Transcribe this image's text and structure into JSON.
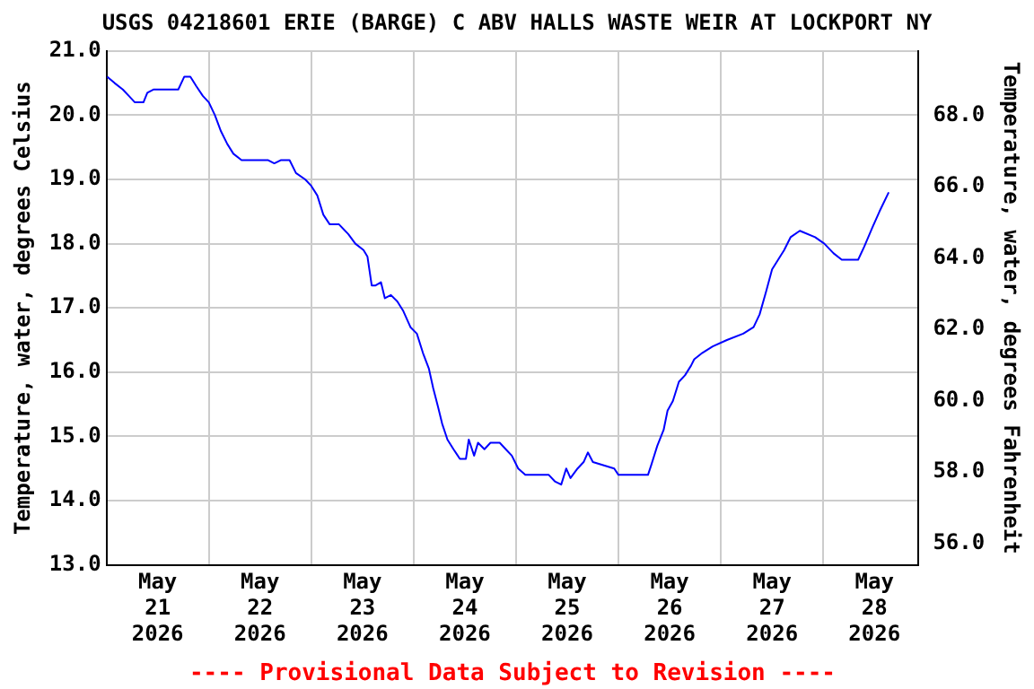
{
  "chart_data": {
    "type": "line",
    "title": "USGS 04218601 ERIE (BARGE) C ABV HALLS WASTE WEIR AT LOCKPORT NY",
    "ylabel": "Temperature, water, degrees Celsius",
    "y2label": "Temperature, water, degrees Fahrenheit",
    "annotations": [
      "---- Provisional Data Subject to Revision ----"
    ],
    "x": [
      "2026-05-21T00:10",
      "2026-05-21T01:55",
      "2026-05-21T03:50",
      "2026-05-21T05:15",
      "2026-05-21T06:40",
      "2026-05-21T08:40",
      "2026-05-21T09:35",
      "2026-05-21T11:00",
      "2026-05-21T16:50",
      "2026-05-21T18:15",
      "2026-05-21T19:40",
      "2026-05-21T21:05",
      "2026-05-21T22:35",
      "2026-05-22T00:00",
      "2026-05-22T01:25",
      "2026-05-22T02:50",
      "2026-05-22T04:20",
      "2026-05-22T05:45",
      "2026-05-22T07:40",
      "2026-05-22T13:55",
      "2026-05-22T15:20",
      "2026-05-22T16:50",
      "2026-05-22T18:55",
      "2026-05-22T20:25",
      "2026-05-22T22:35",
      "2026-05-23T00:00",
      "2026-05-23T01:25",
      "2026-05-23T02:50",
      "2026-05-23T04:20",
      "2026-05-23T06:30",
      "2026-05-23T08:40",
      "2026-05-23T10:20",
      "2026-05-23T12:15",
      "2026-05-23T13:10",
      "2026-05-23T14:10",
      "2026-05-23T15:05",
      "2026-05-23T16:20",
      "2026-05-23T17:15",
      "2026-05-23T18:40",
      "2026-05-23T20:10",
      "2026-05-23T21:35",
      "2026-05-23T23:15",
      "2026-05-24T00:45",
      "2026-05-24T02:10",
      "2026-05-24T03:35",
      "2026-05-24T04:35",
      "2026-05-24T05:45",
      "2026-05-24T06:40",
      "2026-05-24T07:55",
      "2026-05-24T09:20",
      "2026-05-24T10:50",
      "2026-05-24T12:15",
      "2026-05-24T12:55",
      "2026-05-24T14:10",
      "2026-05-24T15:05",
      "2026-05-24T16:35",
      "2026-05-24T18:00",
      "2026-05-24T20:10",
      "2026-05-24T21:35",
      "2026-05-24T23:00",
      "2026-05-25T00:30",
      "2026-05-25T02:10",
      "2026-05-25T07:40",
      "2026-05-25T09:05",
      "2026-05-25T10:35",
      "2026-05-25T11:45",
      "2026-05-25T12:45",
      "2026-05-25T14:25",
      "2026-05-25T15:50",
      "2026-05-25T16:50",
      "2026-05-25T18:00",
      "2026-05-25T23:00",
      "2026-05-26T00:00",
      "2026-05-26T06:55",
      "2026-05-26T07:40",
      "2026-05-26T09:05",
      "2026-05-26T10:35",
      "2026-05-26T11:30",
      "2026-05-26T12:45",
      "2026-05-26T14:10",
      "2026-05-26T15:35",
      "2026-05-26T17:00",
      "2026-05-26T17:45",
      "2026-05-26T19:40",
      "2026-05-26T22:05",
      "2026-05-27T01:25",
      "2026-05-27T05:15",
      "2026-05-27T07:40",
      "2026-05-27T09:05",
      "2026-05-27T10:35",
      "2026-05-27T12:00",
      "2026-05-27T13:25",
      "2026-05-27T14:50",
      "2026-05-27T16:20",
      "2026-05-27T18:30",
      "2026-05-27T22:05",
      "2026-05-28T00:15",
      "2026-05-28T02:25",
      "2026-05-28T04:20",
      "2026-05-28T08:10",
      "2026-05-28T09:35",
      "2026-05-28T11:30",
      "2026-05-28T13:10",
      "2026-05-28T15:20"
    ],
    "series": [
      {
        "color": "#0000ff",
        "values": [
          20.6,
          20.5,
          20.4,
          20.3,
          20.2,
          20.2,
          20.35,
          20.4,
          20.4,
          20.6,
          20.6,
          20.45,
          20.3,
          20.2,
          20.0,
          19.75,
          19.55,
          19.4,
          19.3,
          19.3,
          19.25,
          19.3,
          19.3,
          19.1,
          19.0,
          18.9,
          18.75,
          18.45,
          18.3,
          18.3,
          18.15,
          18.0,
          17.9,
          17.8,
          17.35,
          17.35,
          17.4,
          17.15,
          17.2,
          17.1,
          16.95,
          16.7,
          16.6,
          16.3,
          16.05,
          15.75,
          15.45,
          15.2,
          14.95,
          14.8,
          14.65,
          14.65,
          14.95,
          14.7,
          14.9,
          14.8,
          14.9,
          14.9,
          14.8,
          14.7,
          14.5,
          14.4,
          14.4,
          14.3,
          14.25,
          14.5,
          14.35,
          14.5,
          14.6,
          14.75,
          14.6,
          14.5,
          14.4,
          14.4,
          14.55,
          14.85,
          15.1,
          15.4,
          15.55,
          15.85,
          15.95,
          16.1,
          16.2,
          16.3,
          16.4,
          16.5,
          16.6,
          16.7,
          16.9,
          17.25,
          17.6,
          17.75,
          17.9,
          18.1,
          18.2,
          18.1,
          18.0,
          17.85,
          17.75,
          17.75,
          17.95,
          18.25,
          18.5,
          18.8
        ]
      }
    ],
    "xlim": [
      "2026-05-21T00:00",
      "2026-05-28T22:20"
    ],
    "xticks": [
      {
        "value": "2026-05-21T00:00",
        "label": null
      },
      {
        "value": "2026-05-21T12:00",
        "label": "May\n21\n2026"
      },
      {
        "value": "2026-05-22T00:00",
        "label": null
      },
      {
        "value": "2026-05-22T12:00",
        "label": "May\n22\n2026"
      },
      {
        "value": "2026-05-23T00:00",
        "label": null
      },
      {
        "value": "2026-05-23T12:00",
        "label": "May\n23\n2026"
      },
      {
        "value": "2026-05-24T00:00",
        "label": null
      },
      {
        "value": "2026-05-24T12:00",
        "label": "May\n24\n2026"
      },
      {
        "value": "2026-05-25T00:00",
        "label": null
      },
      {
        "value": "2026-05-25T12:00",
        "label": "May\n25\n2026"
      },
      {
        "value": "2026-05-26T00:00",
        "label": null
      },
      {
        "value": "2026-05-26T12:00",
        "label": "May\n26\n2026"
      },
      {
        "value": "2026-05-27T00:00",
        "label": null
      },
      {
        "value": "2026-05-27T12:00",
        "label": "May\n27\n2026"
      },
      {
        "value": "2026-05-28T00:00",
        "label": null
      },
      {
        "value": "2026-05-28T12:00",
        "label": "May\n28\n2026"
      }
    ],
    "ylim": [
      13,
      21
    ],
    "yticks": [
      {
        "value": 13,
        "label": "13.0"
      },
      {
        "value": 14,
        "label": "14.0"
      },
      {
        "value": 15,
        "label": "15.0"
      },
      {
        "value": 16,
        "label": "16.0"
      },
      {
        "value": 17,
        "label": "17.0"
      },
      {
        "value": 18,
        "label": "18.0"
      },
      {
        "value": 19,
        "label": "19.0"
      },
      {
        "value": 20,
        "label": "20.0"
      },
      {
        "value": 21,
        "label": "21.0"
      }
    ],
    "y2lim": [
      55.4,
      69.8
    ],
    "y2ticks": [
      {
        "value": 56,
        "label": "56.0"
      },
      {
        "value": 58,
        "label": "58.0"
      },
      {
        "value": 60,
        "label": "60.0"
      },
      {
        "value": 62,
        "label": "62.0"
      },
      {
        "value": 64,
        "label": "64.0"
      },
      {
        "value": 66,
        "label": "66.0"
      },
      {
        "value": 68,
        "label": "68.0"
      }
    ],
    "grid": true,
    "legend": false,
    "marker": "none",
    "line_style": "solid"
  }
}
